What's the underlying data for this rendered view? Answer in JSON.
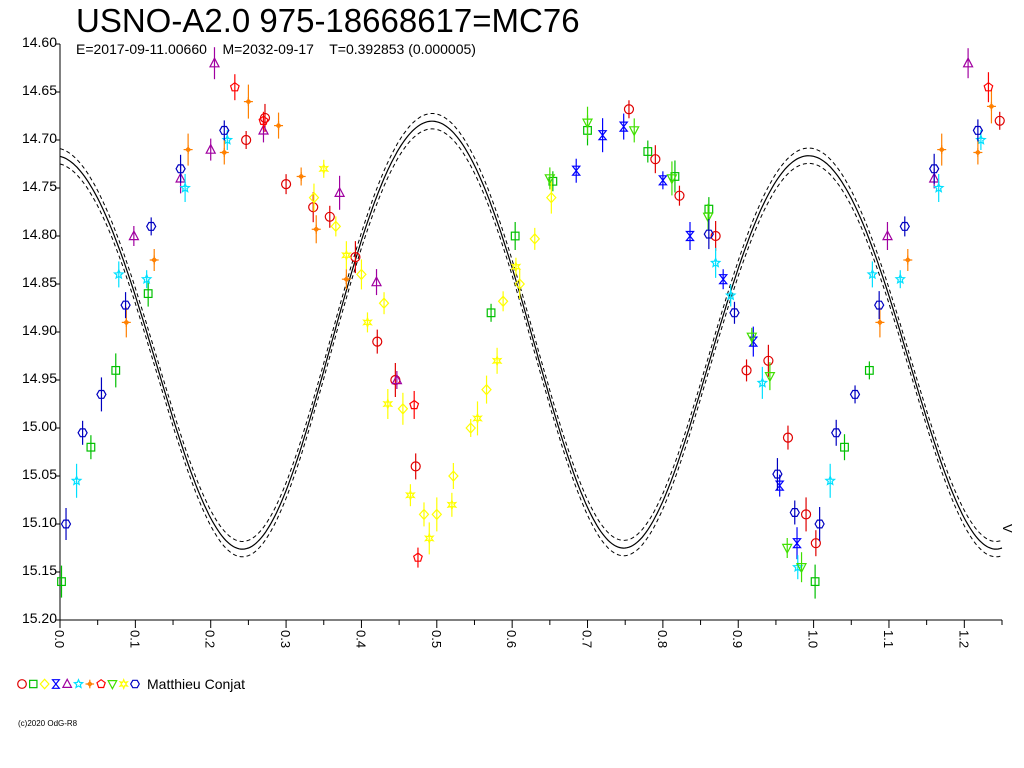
{
  "title": "USNO-A2.0 975-18668617=MC76",
  "subtitle": "E=2017-09-11.00660    M=2032-09-17    T=0.392853 (0.000005)",
  "legend": {
    "text": "Matthieu Conjat",
    "markers": [
      {
        "shape": "circle",
        "color": "#e00000"
      },
      {
        "shape": "square",
        "color": "#00c000"
      },
      {
        "shape": "diamond",
        "color": "#ffff00"
      },
      {
        "shape": "bowtie",
        "color": "#0000ff"
      },
      {
        "shape": "triangle",
        "color": "#a000a0"
      },
      {
        "shape": "star",
        "color": "#00e0ff"
      },
      {
        "shape": "plus",
        "color": "#ff8000"
      },
      {
        "shape": "pentagon",
        "color": "#ff0000"
      },
      {
        "shape": "tri-down",
        "color": "#40e000"
      },
      {
        "shape": "hexstar",
        "color": "#ffff00"
      },
      {
        "shape": "hexagon",
        "color": "#0000c0"
      }
    ]
  },
  "copyright": "(c)2020 OdG-R8",
  "side_mark": "V",
  "chart_data": {
    "type": "scatter",
    "xlabel": "",
    "ylabel": "",
    "xlim": [
      0.0,
      1.25
    ],
    "ylim": [
      14.6,
      15.2
    ],
    "y_inverted": true,
    "grid": false,
    "yticks": [
      "14.60",
      "14.65",
      "14.70",
      "14.75",
      "14.80",
      "14.85",
      "14.90",
      "14.95",
      "15.00",
      "15.05",
      "15.10",
      "15.15",
      "15.20"
    ],
    "xticks": [
      "0.0",
      "0.1",
      "0.2",
      "0.3",
      "0.4",
      "0.5",
      "0.6",
      "0.7",
      "0.8",
      "0.9",
      "1.0",
      "1.1",
      "1.2"
    ],
    "model": {
      "period_phase": 1.0,
      "mean_mag": 14.905,
      "components": [
        {
          "cos2": -0.213
        },
        {
          "cos1": 0.018
        },
        {
          "cos4": 0.007
        },
        {
          "sin2": 0.015
        }
      ],
      "dashed_offset": 0.008
    },
    "series": [
      {
        "name": "Matthieu Conjat",
        "color": "#e00000",
        "shape": "circle",
        "points": [
          [
            0.247,
            14.7
          ],
          [
            0.272,
            14.677
          ],
          [
            0.3,
            14.746
          ],
          [
            0.336,
            14.77
          ],
          [
            0.358,
            14.78
          ],
          [
            0.392,
            14.822
          ],
          [
            0.421,
            14.91
          ],
          [
            0.445,
            14.95
          ],
          [
            0.472,
            15.04
          ],
          [
            0.755,
            14.668
          ],
          [
            0.79,
            14.72
          ],
          [
            0.822,
            14.758
          ],
          [
            0.87,
            14.8
          ],
          [
            0.911,
            14.94
          ],
          [
            0.94,
            14.93
          ],
          [
            0.966,
            15.01
          ],
          [
            0.99,
            15.09
          ],
          [
            1.003,
            15.12
          ],
          [
            1.247,
            14.68
          ]
        ]
      },
      {
        "name": "Matthieu Conjat",
        "color": "#00c000",
        "shape": "square",
        "points": [
          [
            0.002,
            15.16
          ],
          [
            0.041,
            15.02
          ],
          [
            0.074,
            14.94
          ],
          [
            0.117,
            14.86
          ],
          [
            0.572,
            14.88
          ],
          [
            0.604,
            14.8
          ],
          [
            0.654,
            14.743
          ],
          [
            0.7,
            14.69
          ],
          [
            0.78,
            14.712
          ],
          [
            0.816,
            14.738
          ],
          [
            0.861,
            14.772
          ],
          [
            1.002,
            15.16
          ],
          [
            1.041,
            15.02
          ],
          [
            1.074,
            14.94
          ]
        ]
      },
      {
        "name": "Matthieu Conjat",
        "color": "#ffff00",
        "shape": "diamond",
        "points": [
          [
            0.337,
            14.76
          ],
          [
            0.366,
            14.79
          ],
          [
            0.4,
            14.84
          ],
          [
            0.43,
            14.87
          ],
          [
            0.455,
            14.98
          ],
          [
            0.483,
            15.09
          ],
          [
            0.5,
            15.09
          ],
          [
            0.522,
            15.05
          ],
          [
            0.545,
            15.0
          ],
          [
            0.566,
            14.96
          ],
          [
            0.588,
            14.868
          ],
          [
            0.61,
            14.85
          ],
          [
            0.63,
            14.803
          ],
          [
            0.652,
            14.76
          ]
        ]
      },
      {
        "name": "Matthieu Conjat",
        "color": "#0000ff",
        "shape": "bowtie",
        "points": [
          [
            0.685,
            14.732
          ],
          [
            0.72,
            14.695
          ],
          [
            0.748,
            14.686
          ],
          [
            0.8,
            14.742
          ],
          [
            0.836,
            14.8
          ],
          [
            0.88,
            14.845
          ],
          [
            0.92,
            14.91
          ],
          [
            0.955,
            15.06
          ],
          [
            0.978,
            15.12
          ]
        ]
      },
      {
        "name": "Matthieu Conjat",
        "color": "#a000a0",
        "shape": "triangle",
        "points": [
          [
            0.098,
            14.8
          ],
          [
            0.16,
            14.74
          ],
          [
            0.2,
            14.71
          ],
          [
            0.205,
            14.62
          ],
          [
            0.27,
            14.69
          ],
          [
            0.371,
            14.755
          ],
          [
            0.42,
            14.848
          ],
          [
            0.447,
            14.95
          ],
          [
            1.098,
            14.8
          ],
          [
            1.16,
            14.74
          ],
          [
            1.205,
            14.62
          ]
        ]
      },
      {
        "name": "Matthieu Conjat",
        "color": "#00e0ff",
        "shape": "star",
        "points": [
          [
            0.022,
            15.055
          ],
          [
            0.078,
            14.84
          ],
          [
            0.115,
            14.845
          ],
          [
            0.166,
            14.75
          ],
          [
            0.222,
            14.7
          ],
          [
            0.87,
            14.828
          ],
          [
            0.89,
            14.862
          ],
          [
            0.932,
            14.953
          ],
          [
            0.979,
            15.145
          ],
          [
            1.022,
            15.055
          ],
          [
            1.078,
            14.84
          ],
          [
            1.115,
            14.845
          ],
          [
            1.166,
            14.75
          ],
          [
            1.222,
            14.7
          ]
        ]
      },
      {
        "name": "Matthieu Conjat",
        "color": "#ff8000",
        "shape": "plus",
        "points": [
          [
            0.088,
            14.89
          ],
          [
            0.125,
            14.825
          ],
          [
            0.17,
            14.71
          ],
          [
            0.218,
            14.713
          ],
          [
            0.25,
            14.66
          ],
          [
            0.29,
            14.685
          ],
          [
            0.32,
            14.738
          ],
          [
            0.34,
            14.793
          ],
          [
            0.38,
            14.845
          ],
          [
            1.088,
            14.89
          ],
          [
            1.125,
            14.825
          ],
          [
            1.17,
            14.71
          ],
          [
            1.218,
            14.713
          ],
          [
            1.236,
            14.665
          ]
        ]
      },
      {
        "name": "Matthieu Conjat",
        "color": "#ff0000",
        "shape": "pentagon",
        "points": [
          [
            0.232,
            14.645
          ],
          [
            0.27,
            14.68
          ],
          [
            0.47,
            14.976
          ],
          [
            0.475,
            15.135
          ],
          [
            1.232,
            14.645
          ]
        ]
      },
      {
        "name": "Matthieu Conjat",
        "color": "#40e000",
        "shape": "tri-down",
        "points": [
          [
            0.65,
            14.74
          ],
          [
            0.7,
            14.682
          ],
          [
            0.762,
            14.69
          ],
          [
            0.812,
            14.74
          ],
          [
            0.86,
            14.78
          ],
          [
            0.918,
            14.905
          ],
          [
            0.942,
            14.946
          ],
          [
            0.965,
            15.125
          ],
          [
            0.984,
            15.145
          ]
        ]
      },
      {
        "name": "Matthieu Conjat",
        "color": "#ffff00",
        "shape": "hexstar",
        "points": [
          [
            0.35,
            14.73
          ],
          [
            0.38,
            14.82
          ],
          [
            0.408,
            14.89
          ],
          [
            0.435,
            14.975
          ],
          [
            0.465,
            15.07
          ],
          [
            0.49,
            15.115
          ],
          [
            0.52,
            15.08
          ],
          [
            0.554,
            14.99
          ],
          [
            0.58,
            14.93
          ],
          [
            0.605,
            14.832
          ]
        ]
      },
      {
        "name": "Matthieu Conjat",
        "color": "#0000c0",
        "shape": "hexagon",
        "points": [
          [
            0.008,
            15.1
          ],
          [
            0.03,
            15.005
          ],
          [
            0.055,
            14.965
          ],
          [
            0.087,
            14.872
          ],
          [
            0.121,
            14.79
          ],
          [
            0.16,
            14.73
          ],
          [
            0.218,
            14.69
          ],
          [
            0.861,
            14.798
          ],
          [
            0.895,
            14.88
          ],
          [
            0.952,
            15.048
          ],
          [
            0.975,
            15.088
          ],
          [
            1.008,
            15.1
          ],
          [
            1.03,
            15.005
          ],
          [
            1.055,
            14.965
          ],
          [
            1.087,
            14.872
          ],
          [
            1.121,
            14.79
          ],
          [
            1.16,
            14.73
          ],
          [
            1.218,
            14.69
          ]
        ]
      }
    ]
  }
}
